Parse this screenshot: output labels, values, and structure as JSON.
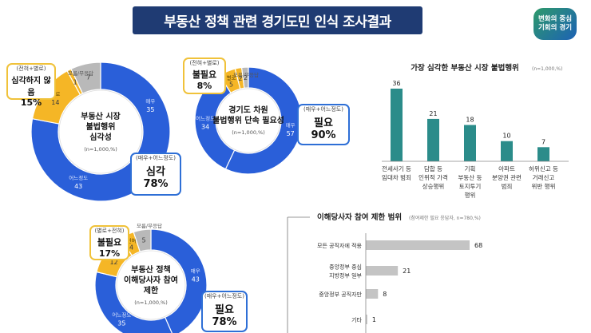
{
  "page_title": "부동산 정책 관련 경기도민 인식 조사결과",
  "logo": {
    "line1": "변화의 중심",
    "line2": "기회의 경기"
  },
  "colors": {
    "blue": "#2a5fd9",
    "yellow": "#f5b626",
    "gray": "#b9b9b9",
    "teal": "#2b8c8a",
    "bar_gray": "#c4c4c4",
    "navy": "#1f3b73"
  },
  "chart_data": [
    {
      "type": "pie",
      "center_title": [
        "부동산 시장",
        "불법행위",
        "심각성"
      ],
      "note": "(n=1,000,%)",
      "slices": [
        {
          "label": "매우",
          "value": 35,
          "color": "#2a5fd9"
        },
        {
          "label": "어느정도",
          "value": 43,
          "color": "#2a5fd9"
        },
        {
          "label": "별로",
          "value": 14,
          "color": "#f5b626"
        },
        {
          "label": "전혀",
          "value": 1,
          "color": "#f5b626"
        },
        {
          "label": "모름/무응답",
          "value": 7,
          "color": "#b9b9b9"
        }
      ],
      "box_yellow": {
        "small": "(전혀+별로)",
        "big1": "심각하지 않음",
        "big2": "15%"
      },
      "box_blue": {
        "small": "(매우+어느정도)",
        "big1": "심각",
        "big2": "78%"
      }
    },
    {
      "type": "pie",
      "center_title": [
        "경기도 차원",
        "불법행위 단속 필요성"
      ],
      "note": "(n=1,000,%)",
      "slices": [
        {
          "label": "매우",
          "value": 57,
          "color": "#2a5fd9"
        },
        {
          "label": "어느정도",
          "value": 34,
          "color": "#2a5fd9"
        },
        {
          "label": "별로",
          "value": 5,
          "color": "#f5b626"
        },
        {
          "label": "전혀",
          "value": 2,
          "color": "#f5b626"
        },
        {
          "label": "모름/무응답",
          "value": 2,
          "color": "#b9b9b9"
        }
      ],
      "box_yellow": {
        "small": "(전혀+별로)",
        "big1": "불필요",
        "big2": "8%"
      },
      "box_blue": {
        "small": "(매우+어느정도)",
        "big1": "필요",
        "big2": "90%"
      }
    },
    {
      "type": "bar",
      "title": "가장 심각한 부동산 시장 불법행위",
      "note": "(n=1,000,%)",
      "categories": [
        [
          "전세사기 등",
          "임대차 범죄"
        ],
        [
          "담합 등",
          "인위적 가격",
          "상승행위"
        ],
        [
          "기획",
          "부동산 등",
          "토지투기",
          "행위"
        ],
        [
          "아파트",
          "분양권 관련",
          "범죄"
        ],
        [
          "허위신고 등",
          "거래신고",
          "위반 행위"
        ]
      ],
      "values": [
        36,
        21,
        18,
        10,
        7
      ],
      "color": "#2b8c8a"
    },
    {
      "type": "pie",
      "center_title": [
        "부동산 정책",
        "이해당사자 참여",
        "제한"
      ],
      "note": "(n=1,000,%)",
      "slices": [
        {
          "label": "매우",
          "value": 43,
          "color": "#2a5fd9"
        },
        {
          "label": "어느정도",
          "value": 35,
          "color": "#2a5fd9"
        },
        {
          "label": "별로",
          "value": 12,
          "color": "#f5b626"
        },
        {
          "label": "전혀",
          "value": 4,
          "color": "#f5b626"
        },
        {
          "label": "모름/무응답",
          "value": 5,
          "color": "#b9b9b9"
        }
      ],
      "box_yellow": {
        "small": "(별로+전혀)",
        "big1": "불필요",
        "big2": "17%"
      },
      "box_blue": {
        "small": "(매우+어느정도)",
        "big1": "필요",
        "big2": "78%"
      }
    },
    {
      "type": "bar",
      "orientation": "horizontal",
      "title": "이해당사자 참여 제한 범위",
      "note": "(참여제한 필요 응답자, n=780,%)",
      "categories": [
        [
          "모든 공직자에 적용"
        ],
        [
          "중앙정부 중심",
          "지방정부 일부"
        ],
        [
          "중앙정부 공직자만"
        ],
        [
          "기타"
        ]
      ],
      "values": [
        68,
        21,
        8,
        1
      ],
      "color": "#c4c4c4"
    }
  ]
}
